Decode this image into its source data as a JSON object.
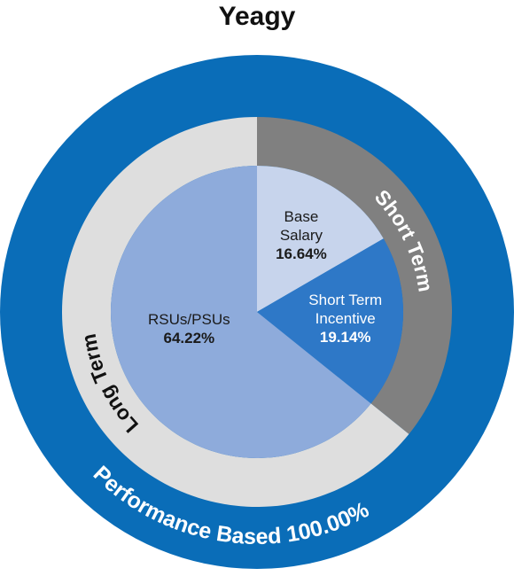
{
  "chart_data": {
    "type": "pie",
    "title": "Yeagy",
    "outer": {
      "name": "Performance Based",
      "value": 100,
      "value_label": "100.00%",
      "color": "#0a6db8"
    },
    "groups": [
      {
        "name": "Short Term",
        "color": "#808080",
        "categories": [
          "Base Salary",
          "Short Term Incentive"
        ],
        "values": [
          16.64,
          19.14
        ],
        "value_labels": [
          "16.64%",
          "19.14%"
        ],
        "colors": [
          "#c7d4ec",
          "#2e78c7"
        ]
      },
      {
        "name": "Long Term",
        "color": "#dedede",
        "categories": [
          "RSUs/PSUs"
        ],
        "values": [
          64.22
        ],
        "value_labels": [
          "64.22%"
        ],
        "colors": [
          "#8eabdb"
        ]
      }
    ]
  }
}
